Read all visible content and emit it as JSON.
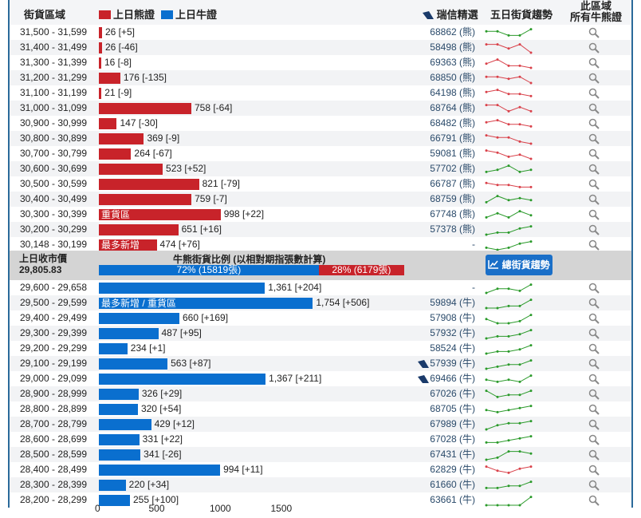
{
  "header": {
    "range": "街貨區域",
    "bear_legend": "上日熊證",
    "bull_legend": "上日牛證",
    "pick": "瑞信精選",
    "trend": "五日街貨趨勢",
    "all_line1": "此區域",
    "all_line2": "所有牛熊證"
  },
  "colors": {
    "bear": "#c8232a",
    "bull": "#0a6fcf",
    "up": "#2a9a2a",
    "down": "#d9414a"
  },
  "bear_rows": [
    {
      "range": "31,500 - 31,599",
      "qty": 26,
      "label": "26 [+5]",
      "code": "68862 (熊)",
      "trend": "up",
      "spark": [
        2,
        2,
        4,
        4,
        1
      ]
    },
    {
      "range": "31,400 - 31,499",
      "qty": 26,
      "label": "26 [-46]",
      "code": "58498 (熊)",
      "trend": "down",
      "spark": [
        1,
        1,
        3,
        1,
        5
      ]
    },
    {
      "range": "31,300 - 31,399",
      "qty": 16,
      "label": "16 [-8]",
      "code": "69363 (熊)",
      "trend": "down",
      "spark": [
        3,
        1,
        4,
        4,
        5
      ]
    },
    {
      "range": "31,200 - 31,299",
      "qty": 176,
      "label": "176 [-135]",
      "code": "68850 (熊)",
      "trend": "down",
      "spark": [
        2,
        2,
        3,
        2,
        5
      ]
    },
    {
      "range": "31,100 - 31,199",
      "qty": 21,
      "label": "21 [-9]",
      "code": "64198 (熊)",
      "trend": "down",
      "spark": [
        2,
        1,
        3,
        3,
        4
      ]
    },
    {
      "range": "31,000 - 31,099",
      "qty": 758,
      "label": "758 [-64]",
      "code": "68764 (熊)",
      "trend": "down",
      "spark": [
        1,
        1,
        4,
        2,
        4
      ]
    },
    {
      "range": "30,900 - 30,999",
      "qty": 147,
      "label": "147 [-30]",
      "code": "68482 (熊)",
      "trend": "down",
      "spark": [
        2,
        1,
        3,
        3,
        4
      ]
    },
    {
      "range": "30,800 - 30,899",
      "qty": 369,
      "label": "369 [-9]",
      "code": "66791 (熊)",
      "trend": "down",
      "spark": [
        1,
        2,
        2,
        4,
        5
      ]
    },
    {
      "range": "30,700 - 30,799",
      "qty": 264,
      "label": "264 [-67]",
      "code": "59081 (熊)",
      "trend": "down",
      "spark": [
        1,
        2,
        4,
        3,
        5
      ]
    },
    {
      "range": "30,600 - 30,699",
      "qty": 523,
      "label": "523 [+52]",
      "code": "57702 (熊)",
      "trend": "up",
      "spark": [
        4,
        3,
        1,
        4,
        3
      ]
    },
    {
      "range": "30,500 - 30,599",
      "qty": 821,
      "label": "821 [-79]",
      "code": "66787 (熊)",
      "trend": "down",
      "spark": [
        2,
        3,
        3,
        4,
        4
      ]
    },
    {
      "range": "30,400 - 30,499",
      "qty": 759,
      "label": "759 [-7]",
      "code": "68759 (熊)",
      "trend": "up",
      "spark": [
        4,
        1,
        3,
        2,
        3
      ]
    },
    {
      "range": "30,300 - 30,399",
      "qty": 998,
      "label": "998 [+22]",
      "tag": "重貨區",
      "code": "67748 (熊)",
      "trend": "up",
      "spark": [
        4,
        2,
        4,
        1,
        3
      ]
    },
    {
      "range": "30,200 - 30,299",
      "qty": 651,
      "label": "651 [+16]",
      "code": "57378 (熊)",
      "trend": "up",
      "spark": [
        5,
        4,
        4,
        2,
        1
      ]
    },
    {
      "range": "30,148 - 30,199",
      "qty": 474,
      "label": "474 [+76]",
      "tag": "最多新增",
      "code": "-",
      "trend": "up",
      "spark": [
        4,
        5,
        4,
        2,
        1
      ]
    }
  ],
  "middle": {
    "close_label": "上日收市價",
    "close_value": "29,805.83",
    "ratio_title": "牛熊街貨比例 (以相對期指張數計算)",
    "bull_pct": 72,
    "bull_text": "72% (15819張)",
    "bear_text": "28% (6179張)",
    "trend_button": "總街貨趨勢"
  },
  "bull_rows": [
    {
      "range": "29,600 - 29,658",
      "qty": 1361,
      "label": "1,361 [+204]",
      "code": "-",
      "trend": "up",
      "spark": [
        5,
        3,
        3,
        4,
        1
      ]
    },
    {
      "range": "29,500 - 29,599",
      "qty": 1754,
      "label": "1,754 [+506]",
      "tag": "最多新增 / 重貨區",
      "code": "59894 (牛)",
      "trend": "up",
      "spark": [
        5,
        5,
        4,
        4,
        1
      ]
    },
    {
      "range": "29,400 - 29,499",
      "qty": 660,
      "label": "660 [+169]",
      "code": "57908 (牛)",
      "trend": "up",
      "spark": [
        3,
        5,
        5,
        4,
        1
      ]
    },
    {
      "range": "29,300 - 29,399",
      "qty": 487,
      "label": "487 [+95]",
      "code": "57932 (牛)",
      "trend": "up",
      "spark": [
        5,
        4,
        4,
        3,
        1
      ]
    },
    {
      "range": "29,200 - 29,299",
      "qty": 234,
      "label": "234 [+1]",
      "code": "58524 (牛)",
      "trend": "up",
      "spark": [
        5,
        4,
        4,
        3,
        1
      ]
    },
    {
      "range": "29,100 - 29,199",
      "qty": 563,
      "label": "563 [+87]",
      "code": "57939 (牛)",
      "ubs": true,
      "trend": "up",
      "spark": [
        5,
        4,
        3,
        3,
        1
      ]
    },
    {
      "range": "29,000 - 29,099",
      "qty": 1367,
      "label": "1,367 [+211]",
      "code": "69466 (牛)",
      "ubs": true,
      "trend": "up",
      "spark": [
        3,
        4,
        3,
        4,
        1
      ]
    },
    {
      "range": "28,900 - 28,999",
      "qty": 326,
      "label": "326 [+29]",
      "code": "67026 (牛)",
      "trend": "up",
      "spark": [
        1,
        4,
        3,
        3,
        1
      ]
    },
    {
      "range": "28,800 - 28,899",
      "qty": 320,
      "label": "320 [+54]",
      "code": "68705 (牛)",
      "trend": "up",
      "spark": [
        3,
        4,
        3,
        2,
        1
      ]
    },
    {
      "range": "28,700 - 28,799",
      "qty": 429,
      "label": "429 [+12]",
      "code": "67989 (牛)",
      "trend": "up",
      "spark": [
        5,
        3,
        2,
        2,
        1
      ]
    },
    {
      "range": "28,600 - 28,699",
      "qty": 331,
      "label": "331 [+22]",
      "code": "67028 (牛)",
      "trend": "up",
      "spark": [
        4,
        4,
        3,
        2,
        1
      ]
    },
    {
      "range": "28,500 - 28,599",
      "qty": 341,
      "label": "341 [-26]",
      "code": "67431 (牛)",
      "trend": "up",
      "spark": [
        5,
        4,
        1,
        1,
        2
      ]
    },
    {
      "range": "28,400 - 28,499",
      "qty": 994,
      "label": "994 [+11]",
      "code": "62829 (牛)",
      "trend": "down",
      "spark": [
        1,
        3,
        4,
        2,
        1
      ]
    },
    {
      "range": "28,300 - 28,399",
      "qty": 220,
      "label": "220 [+34]",
      "code": "61660 (牛)",
      "trend": "up",
      "spark": [
        4,
        4,
        3,
        3,
        1
      ]
    },
    {
      "range": "28,200 - 28,299",
      "qty": 255,
      "label": "255 [+100]",
      "code": "63661 (牛)",
      "trend": "up",
      "spark": [
        5,
        5,
        5,
        5,
        1
      ]
    }
  ],
  "axis": {
    "ticks": [
      0,
      500,
      1000,
      1500
    ]
  },
  "icons": {
    "pick": "ubs-logo-icon",
    "search": "magnifier-icon",
    "trend_button": "line-chart-icon"
  }
}
